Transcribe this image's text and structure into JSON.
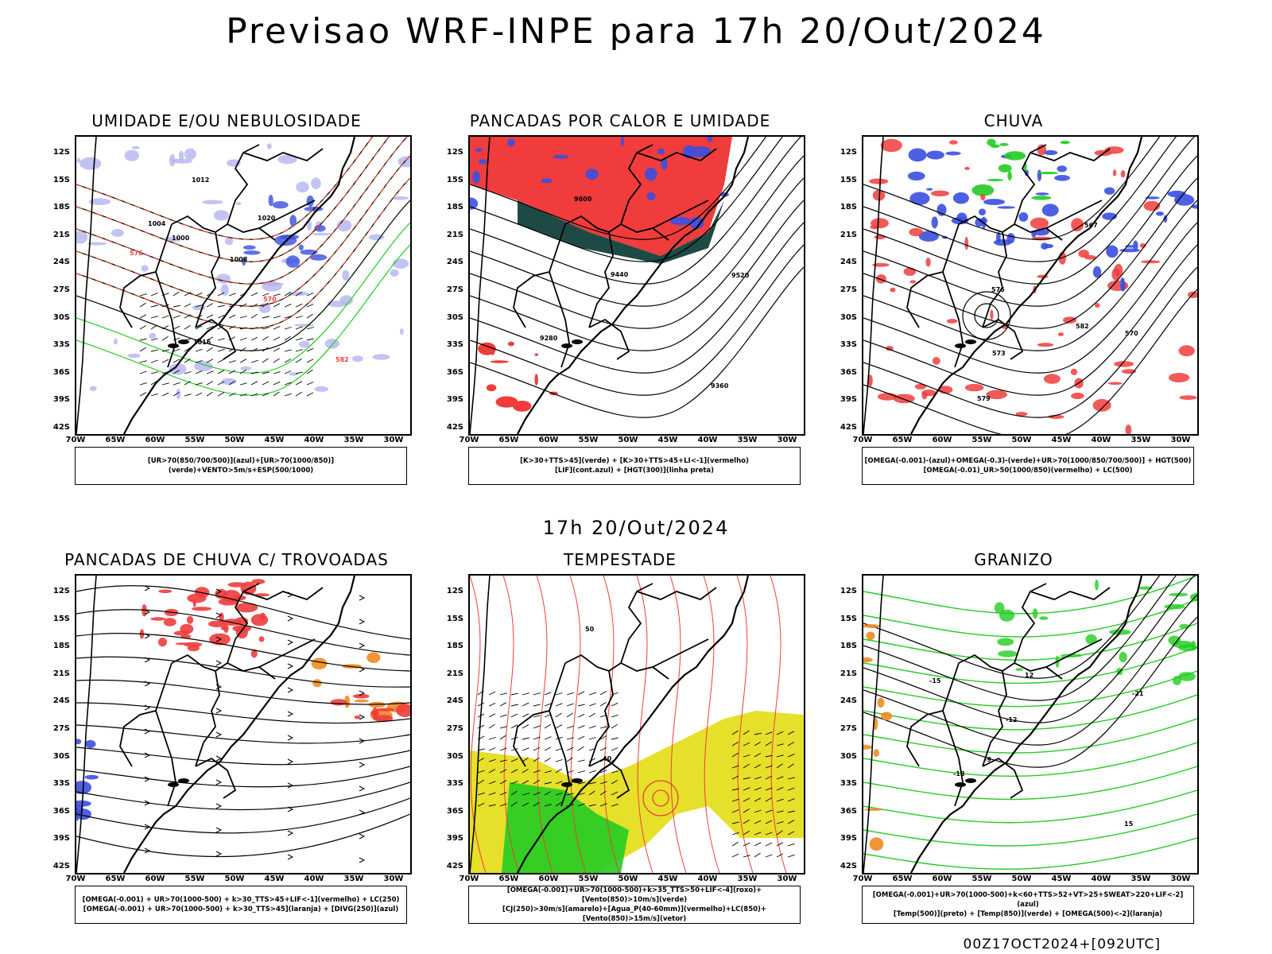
{
  "title": "Previsao WRF-INPE  para 17h 20/Out/2024",
  "mid_label": "17h 20/Out/2024",
  "footer": "00Z17OCT2024+[092UTC]",
  "lat_ticks": [
    "12S",
    "15S",
    "18S",
    "21S",
    "24S",
    "27S",
    "30S",
    "33S",
    "36S",
    "39S",
    "42S"
  ],
  "lon_ticks": [
    "70W",
    "65W",
    "60W",
    "55W",
    "50W",
    "45W",
    "40W",
    "35W",
    "30W"
  ],
  "colors": {
    "blue": "#3a4fe0",
    "green": "#22cc22",
    "red": "#f03c3c",
    "darkgreen": "#1e4a46",
    "yellow": "#e6e02a",
    "orange": "#f08a20",
    "lavender": "#b4b4f0"
  },
  "panels": [
    {
      "title": "UMIDADE E/OU NEBULOSIDADE",
      "legend": [
        "[UR>70(850/700/500)](azul)+[UR>70(1000/850)](verde)+VENTO>5m/s+ESP(500/1000)"
      ],
      "labels": [
        "1000",
        "1004",
        "1008",
        "1012",
        "1016",
        "1020",
        "576",
        "570",
        "582"
      ]
    },
    {
      "title": "PANCADAS POR CALOR E UMIDADE",
      "legend": [
        "[K>30+TTS>45](verde) + [K>30+TTS>45+LI<-1](vermelho)",
        "[LIF](cont.azul) + [HGT(300)](linha preta)"
      ],
      "labels": [
        "9600",
        "9520",
        "9440",
        "9360",
        "9280"
      ]
    },
    {
      "title": "CHUVA",
      "legend": [
        "[OMEGA(-0.001)-(azul)+OMEGA(-0.3)-(verde)+UR>70(1000/850/700/500)] + HGT(500)",
        "[OMEGA(-0.01)_UR>50(1000/850)(vermelho) + LC(500)"
      ],
      "labels": [
        "579",
        "582",
        "576",
        "573",
        "570",
        "567"
      ]
    },
    {
      "title": "PANCADAS DE CHUVA C/ TROVOADAS",
      "legend": [
        "[OMEGA(-0.001) + UR>70(1000-500) + k>30_TTS>45+LIF<-1](vermelho) + LC(250)",
        "[OMEGA(-0.001) + UR>70(1000-500) + k>30_TTS>45](laranja) + [DIVG(250)](azul)"
      ],
      "labels": []
    },
    {
      "title": "TEMPESTADE",
      "legend": [
        "[OMEGA(-0.001)+UR>70(1000-500)+k>35_TTS>50+LIF<-4](roxo)+[Vento(850)>10m/s](verde)",
        "[CJ(250)>30m/s](amarelo)+[Agua_P(40-60mm)](vermelho)+LC(850)+[Vento(850)>15m/s](vetor)"
      ],
      "labels": [
        "40",
        "50"
      ]
    },
    {
      "title": "GRANIZO",
      "legend": [
        "[OMEGA(-0.001)+UR>70(1000-500)+k<60+TTS>52+VT>25+SWEAT>220+LIF<-2](azul)",
        "[Temp(500)](preto) + [Temp(850)](verde) + [OMEGA(500)<-2](laranja)"
      ],
      "labels": [
        "-12",
        "-15",
        "-18",
        "-21",
        "-9",
        "12",
        "15"
      ]
    }
  ]
}
